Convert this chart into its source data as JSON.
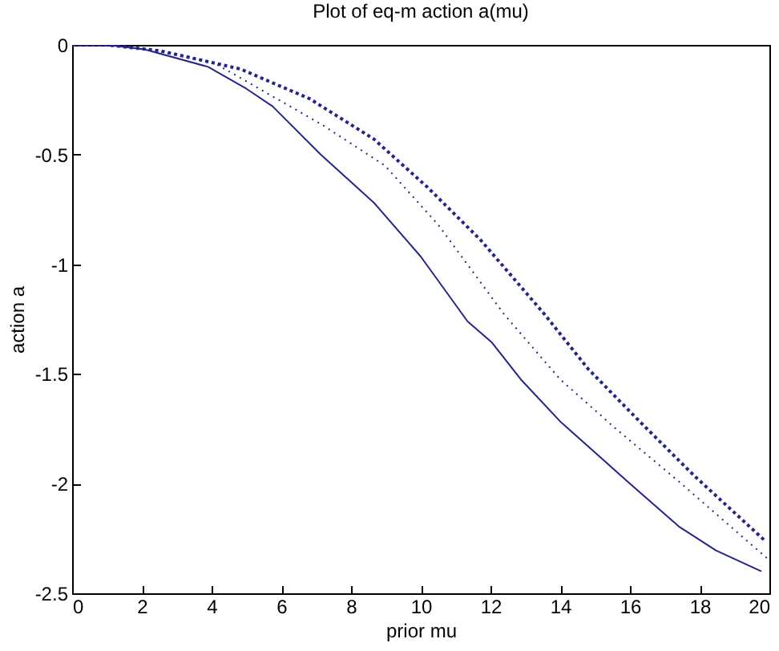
{
  "chart_data": {
    "type": "line",
    "title": "Plot of eq-m action a(mu)",
    "xlabel": "prior mu",
    "ylabel": "action a",
    "xlim": [
      0,
      20
    ],
    "ylim": [
      -2.5,
      0
    ],
    "xticks": [
      0,
      2,
      4,
      6,
      8,
      10,
      12,
      14,
      16,
      18,
      20
    ],
    "yticks": [
      -2.5,
      -2,
      -1.5,
      -1,
      -0.5,
      0
    ],
    "grid": false,
    "series": [
      {
        "color": "#24248f",
        "line_style": "solid",
        "x": [
          0,
          1,
          2.07,
          3.9,
          5.0,
          5.75,
          7.13,
          8.66,
          10.0,
          11.34,
          12.03,
          12.87,
          14.02,
          16.0,
          17.4,
          18.47,
          19.77
        ],
        "values": [
          0,
          0,
          -0.02,
          -0.1,
          -0.2,
          -0.28,
          -0.5,
          -0.72,
          -0.965,
          -1.26,
          -1.355,
          -1.525,
          -1.72,
          -2.0,
          -2.195,
          -2.305,
          -2.4
        ]
      },
      {
        "color": "#24248f",
        "line_style": "dotted",
        "x": [
          0,
          1,
          2,
          4.05,
          7.13,
          8.97,
          10.5,
          12.4,
          14.0,
          15.56,
          17.4,
          20
        ],
        "values": [
          0,
          0,
          -0.015,
          -0.08,
          -0.36,
          -0.55,
          -0.82,
          -1.23,
          -1.525,
          -1.745,
          -1.99,
          -2.35
        ]
      },
      {
        "color": "#24248f",
        "line_style": "dashed",
        "x": [
          0,
          1,
          2.53,
          4.83,
          6.82,
          8.66,
          10.2,
          11.72,
          13.56,
          14.8,
          16.3,
          17.85,
          19.85
        ],
        "values": [
          0,
          0,
          -0.027,
          -0.11,
          -0.246,
          -0.43,
          -0.65,
          -0.89,
          -1.23,
          -1.477,
          -1.72,
          -1.965,
          -2.257
        ]
      }
    ]
  }
}
